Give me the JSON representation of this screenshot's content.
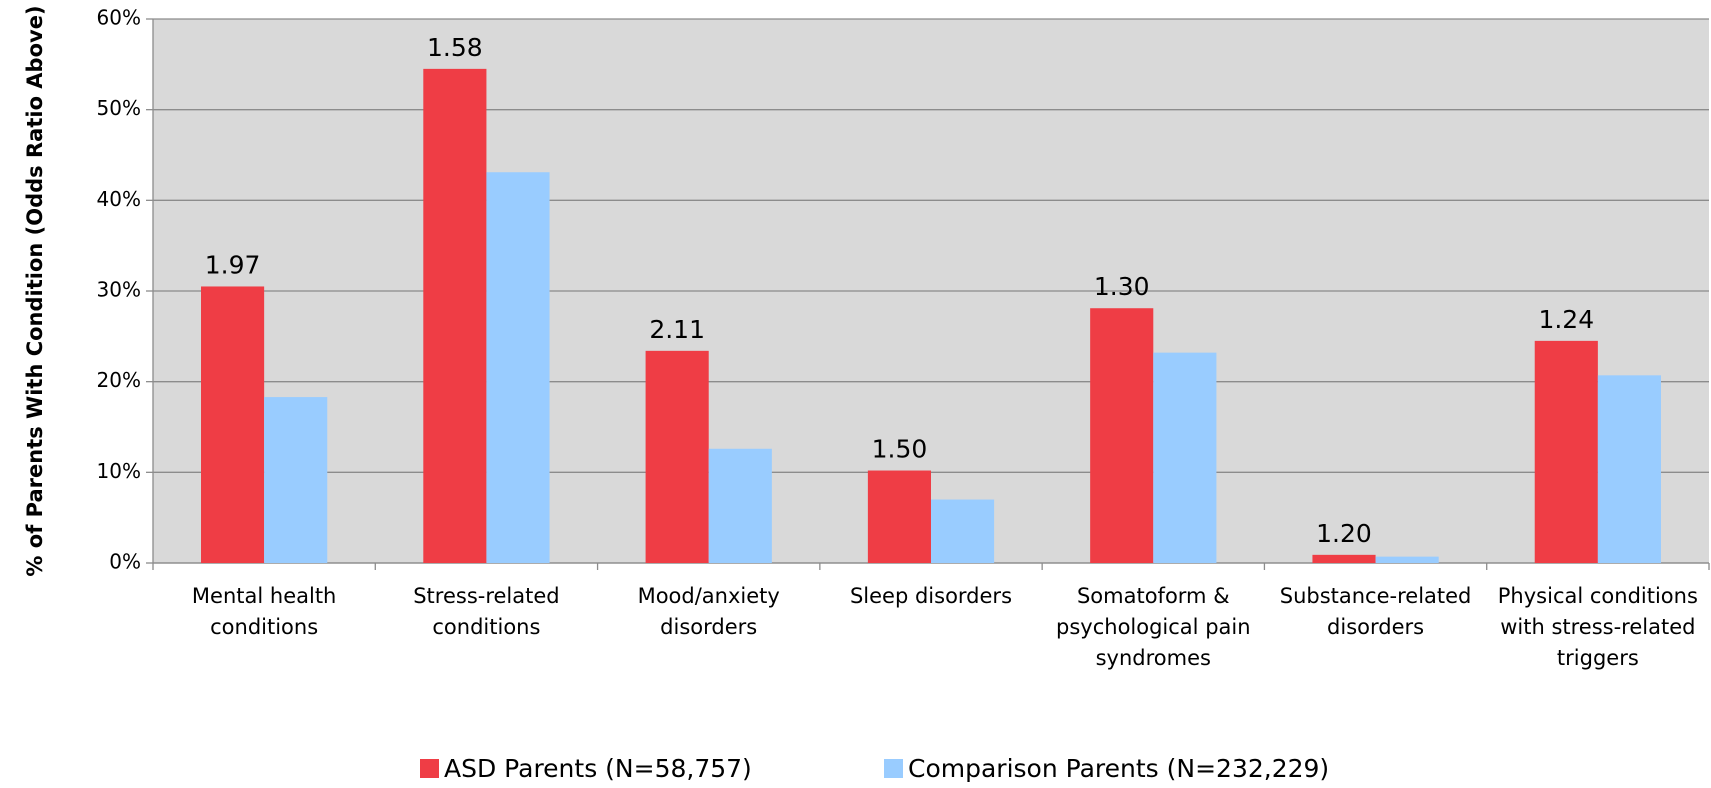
{
  "chart_data": {
    "type": "bar",
    "y_label": "% of Parents With Condition (Odds Ratio Above)",
    "categories": [
      "Mental health conditions",
      "Stress-related conditions",
      "Mood/anxiety disorders",
      "Sleep disorders",
      "Somatoform & psychological pain syndromes",
      "Substance-related disorders",
      "Physical conditions with stress-related triggers"
    ],
    "series": [
      {
        "name": "ASD Parents (N=58,757)",
        "color": "#ef3d45",
        "values": [
          30.5,
          54.5,
          23.4,
          10.2,
          28.1,
          0.9,
          24.5
        ]
      },
      {
        "name": "Comparison Parents (N=232,229)",
        "color": "#99ccff",
        "values": [
          18.3,
          43.1,
          12.6,
          7.0,
          23.2,
          0.7,
          20.7
        ]
      }
    ],
    "odds_ratio_labels": [
      "1.97",
      "1.58",
      "2.11",
      "1.50",
      "1.30",
      "1.20",
      "1.24"
    ],
    "ylim": [
      0,
      60
    ],
    "yticks": [
      {
        "value": 0,
        "label": "0%"
      },
      {
        "value": 10,
        "label": "10%"
      },
      {
        "value": 20,
        "label": "20%"
      },
      {
        "value": 30,
        "label": "30%"
      },
      {
        "value": 40,
        "label": "40%"
      },
      {
        "value": 50,
        "label": "50%"
      },
      {
        "value": 60,
        "label": "60%"
      }
    ],
    "grid": true,
    "legend": "bottom"
  }
}
